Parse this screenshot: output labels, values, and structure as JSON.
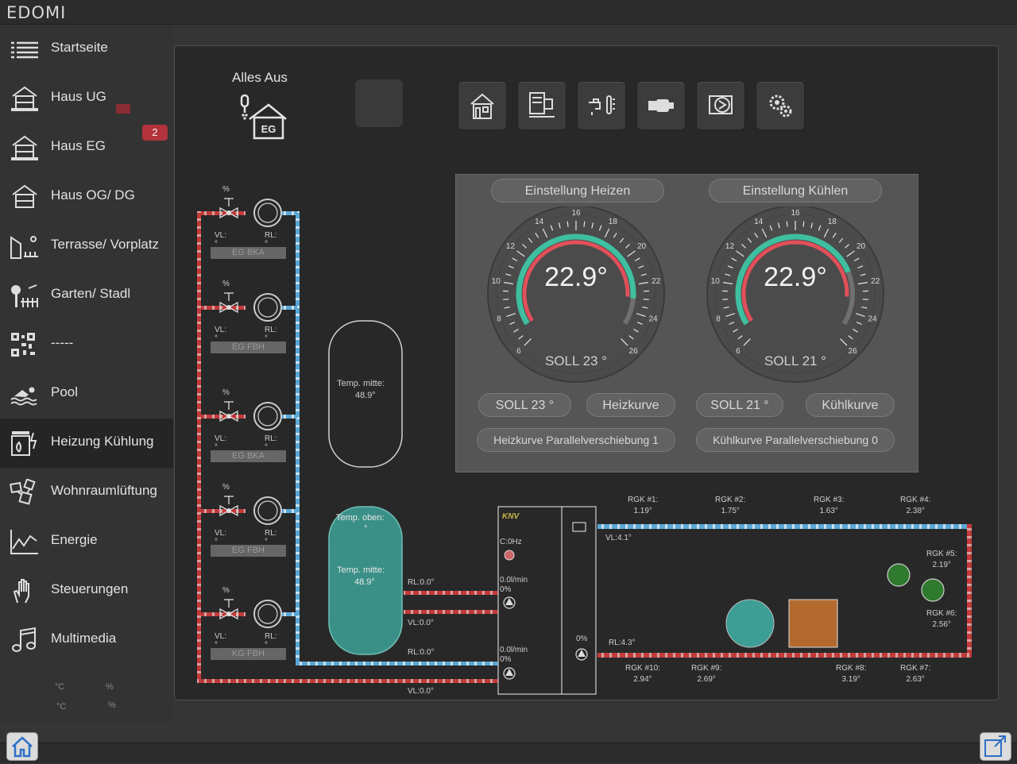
{
  "app": {
    "logo": "EDOMI"
  },
  "sidebar": {
    "items": [
      {
        "label": "Startseite",
        "icon": "list-icon"
      },
      {
        "label": "Haus UG",
        "icon": "house-ug-icon"
      },
      {
        "label": "Haus EG",
        "icon": "house-eg-icon",
        "badge": "2"
      },
      {
        "label": "Haus OG/ DG",
        "icon": "house-og-icon"
      },
      {
        "label": "Terrasse/ Vorplatz",
        "icon": "terrace-icon"
      },
      {
        "label": "Garten/ Stadl",
        "icon": "garden-icon"
      },
      {
        "label": "-----",
        "icon": "qr-code-icon"
      },
      {
        "label": "Pool",
        "icon": "swimmer-icon"
      },
      {
        "label": "Heizung Kühlung",
        "icon": "heating-icon",
        "active": true
      },
      {
        "label": "Wohnraumlüftung",
        "icon": "ventilation-icon"
      },
      {
        "label": "Energie",
        "icon": "chart-line-icon"
      },
      {
        "label": "Steuerungen",
        "icon": "hand-icon"
      },
      {
        "label": "Multimedia",
        "icon": "music-note-icon"
      }
    ],
    "footer": {
      "unit1": "°C",
      "unit2": "%",
      "unit3": "°C",
      "unit4": "%"
    }
  },
  "main": {
    "alles_aus": {
      "label": "Alles Aus",
      "floor": "EG"
    },
    "toolbar": [
      "house-icon",
      "panel-icon",
      "tap-thermometer-icon",
      "pump-icon",
      "heatpump-icon",
      "gears-icon"
    ],
    "heat_cool_panel": {
      "heating": {
        "title": "Einstellung Heizen",
        "current": "22.9°",
        "setpoint_label": "SOLL 23 °",
        "ticks": [
          "6",
          "8",
          "10",
          "12",
          "14",
          "16",
          "18",
          "20",
          "22",
          "24",
          "26"
        ],
        "value": 22.9,
        "setpoint": 23,
        "range": [
          6,
          26
        ],
        "soll_button": "SOLL 23 °",
        "curve_button": "Heizkurve",
        "shift_button": "Heizkurve Parallelverschiebung 1"
      },
      "cooling": {
        "title": "Einstellung Kühlen",
        "current": "22.9°",
        "setpoint_label": "SOLL 21 °",
        "ticks": [
          "6",
          "8",
          "10",
          "12",
          "14",
          "16",
          "18",
          "20",
          "22",
          "24",
          "26"
        ],
        "value": 22.9,
        "setpoint": 21,
        "range": [
          6,
          26
        ],
        "soll_button": "SOLL 21 °",
        "curve_button": "Kühlkurve",
        "shift_button": "Kühlkurve Parallelverschiebung 0"
      }
    },
    "zones": [
      {
        "percent": "%",
        "vl": "VL:°",
        "rl": "RL:°",
        "name": "EG BKA"
      },
      {
        "percent": "%",
        "vl": "VL:°",
        "rl": "RL:°",
        "name": "EG FBH"
      },
      {
        "percent": "%",
        "vl": "VL:°",
        "rl": "RL:°",
        "name": "EG BKA"
      },
      {
        "percent": "%",
        "vl": "VL:°",
        "rl": "RL:°",
        "name": "EG FBH"
      },
      {
        "percent": "%",
        "vl": "VL:°",
        "rl": "RL:°",
        "name": "KG FBH"
      }
    ],
    "tank_cold": {
      "label": "Temp. mitte:",
      "value": "48.9°"
    },
    "tank_hot": {
      "top_label": "Temp. oben:",
      "top_value": "°",
      "mid_label": "Temp. mitte:",
      "mid_value": "48.9°"
    },
    "lines": {
      "rl1": "RL:0.0°",
      "vl1": "VL:0.0°",
      "rl2": "RL:0.0°",
      "vl_bottom": "VL:0.0°"
    },
    "heatpump": {
      "brand": "KNV",
      "compressor": "C:0Hz",
      "flow1": "0.0l/min",
      "flow1_pct": "0%",
      "flow2": "0.0l/min",
      "flow2_pct": "0%",
      "right_pct": "0%"
    },
    "loop": {
      "vl": "VL:4.1°",
      "rl": "RL:4.3°"
    },
    "rgk_top": [
      {
        "name": "RGK #1:",
        "value": "1.19°"
      },
      {
        "name": "RGK #2:",
        "value": "1.75°"
      },
      {
        "name": "RGK #3:",
        "value": "1.63°"
      },
      {
        "name": "RGK #4:",
        "value": "2.38°"
      }
    ],
    "rgk_right": [
      {
        "name": "RGK #5:",
        "value": "2.19°"
      },
      {
        "name": "RGK #6:",
        "value": "2.56°"
      }
    ],
    "rgk_bottom": [
      {
        "name": "RGK #10:",
        "value": "2.94°"
      },
      {
        "name": "RGK #9:",
        "value": "2.69°"
      },
      {
        "name": "RGK #8:",
        "value": "3.19°"
      },
      {
        "name": "RGK #7:",
        "value": "2.63°"
      }
    ],
    "colors": {
      "hot": "#c23a3a",
      "cold": "#5aa7d6",
      "teal": "#3d9e95",
      "tank_hot": "#3a8f86",
      "square": "#b36a2f",
      "green_dot": "#2f7a2f"
    }
  }
}
